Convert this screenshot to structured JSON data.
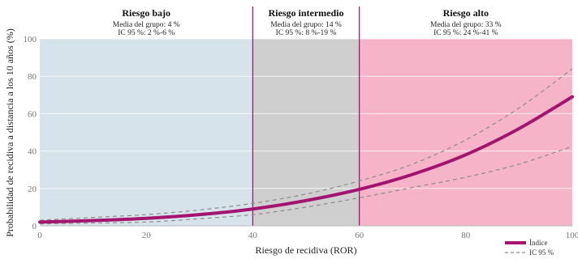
{
  "chart_data": {
    "type": "line",
    "xlabel": "Riesgo de recidiva (ROR)",
    "ylabel": "Probabilidad de recidiva a distancia a los 10 años (%)",
    "xlim": [
      0,
      100
    ],
    "ylim": [
      0,
      100
    ],
    "xticks": [
      "0",
      "20",
      "40",
      "60",
      "80",
      "100"
    ],
    "yticks": [
      "0",
      "20",
      "40",
      "60",
      "80",
      "100"
    ],
    "grid": true,
    "zones": [
      {
        "title": "Riesgo bajo",
        "line1": "Media del grupo: 4 %",
        "line2": "IC 95 %: 2 %-6 %",
        "x0": 0,
        "x1": 40,
        "color": "#d6e3ea"
      },
      {
        "title": "Riesgo intermedio",
        "line1": "Media del grupo: 14 %",
        "line2": "IC 95 %: 8 %-19 %",
        "x0": 40,
        "x1": 60,
        "color": "#cfcfd0"
      },
      {
        "title": "Riesgo alto",
        "line1": "Media del grupo: 33 %",
        "line2": "IC 95 %: 24 %-41 %",
        "x0": 60,
        "x1": 100,
        "color": "#f6b4c8"
      }
    ],
    "boundary_color": "#9b1b6e",
    "series": [
      {
        "name": "Índice",
        "style": "solid",
        "color": "#a3146f",
        "x": [
          0,
          10,
          20,
          30,
          40,
          50,
          60,
          70,
          80,
          90,
          100
        ],
        "y": [
          2,
          2.8,
          4,
          6,
          9,
          13.5,
          19.5,
          27.5,
          38,
          52,
          69
        ]
      },
      {
        "name": "IC 95 %",
        "style": "dashed",
        "color": "#8c8c8c",
        "x": [
          0,
          10,
          20,
          30,
          40,
          50,
          60,
          70,
          80,
          90,
          100
        ],
        "y": [
          3,
          4.5,
          6,
          8.5,
          12,
          17,
          24,
          33,
          46,
          63,
          84
        ]
      },
      {
        "name": "",
        "style": "dashed",
        "color": "#8c8c8c",
        "x": [
          0,
          10,
          20,
          30,
          40,
          50,
          60,
          70,
          80,
          90,
          100
        ],
        "y": [
          1,
          1.5,
          2,
          3.8,
          6,
          10,
          15,
          20.5,
          26,
          33,
          42.5
        ]
      }
    ],
    "legend": {
      "position": "bottom-right",
      "items": [
        {
          "label": "Índice",
          "style": "solid",
          "color": "#a3146f"
        },
        {
          "label": "IC 95 %",
          "style": "dashed",
          "color": "#8c8c8c"
        }
      ]
    }
  }
}
